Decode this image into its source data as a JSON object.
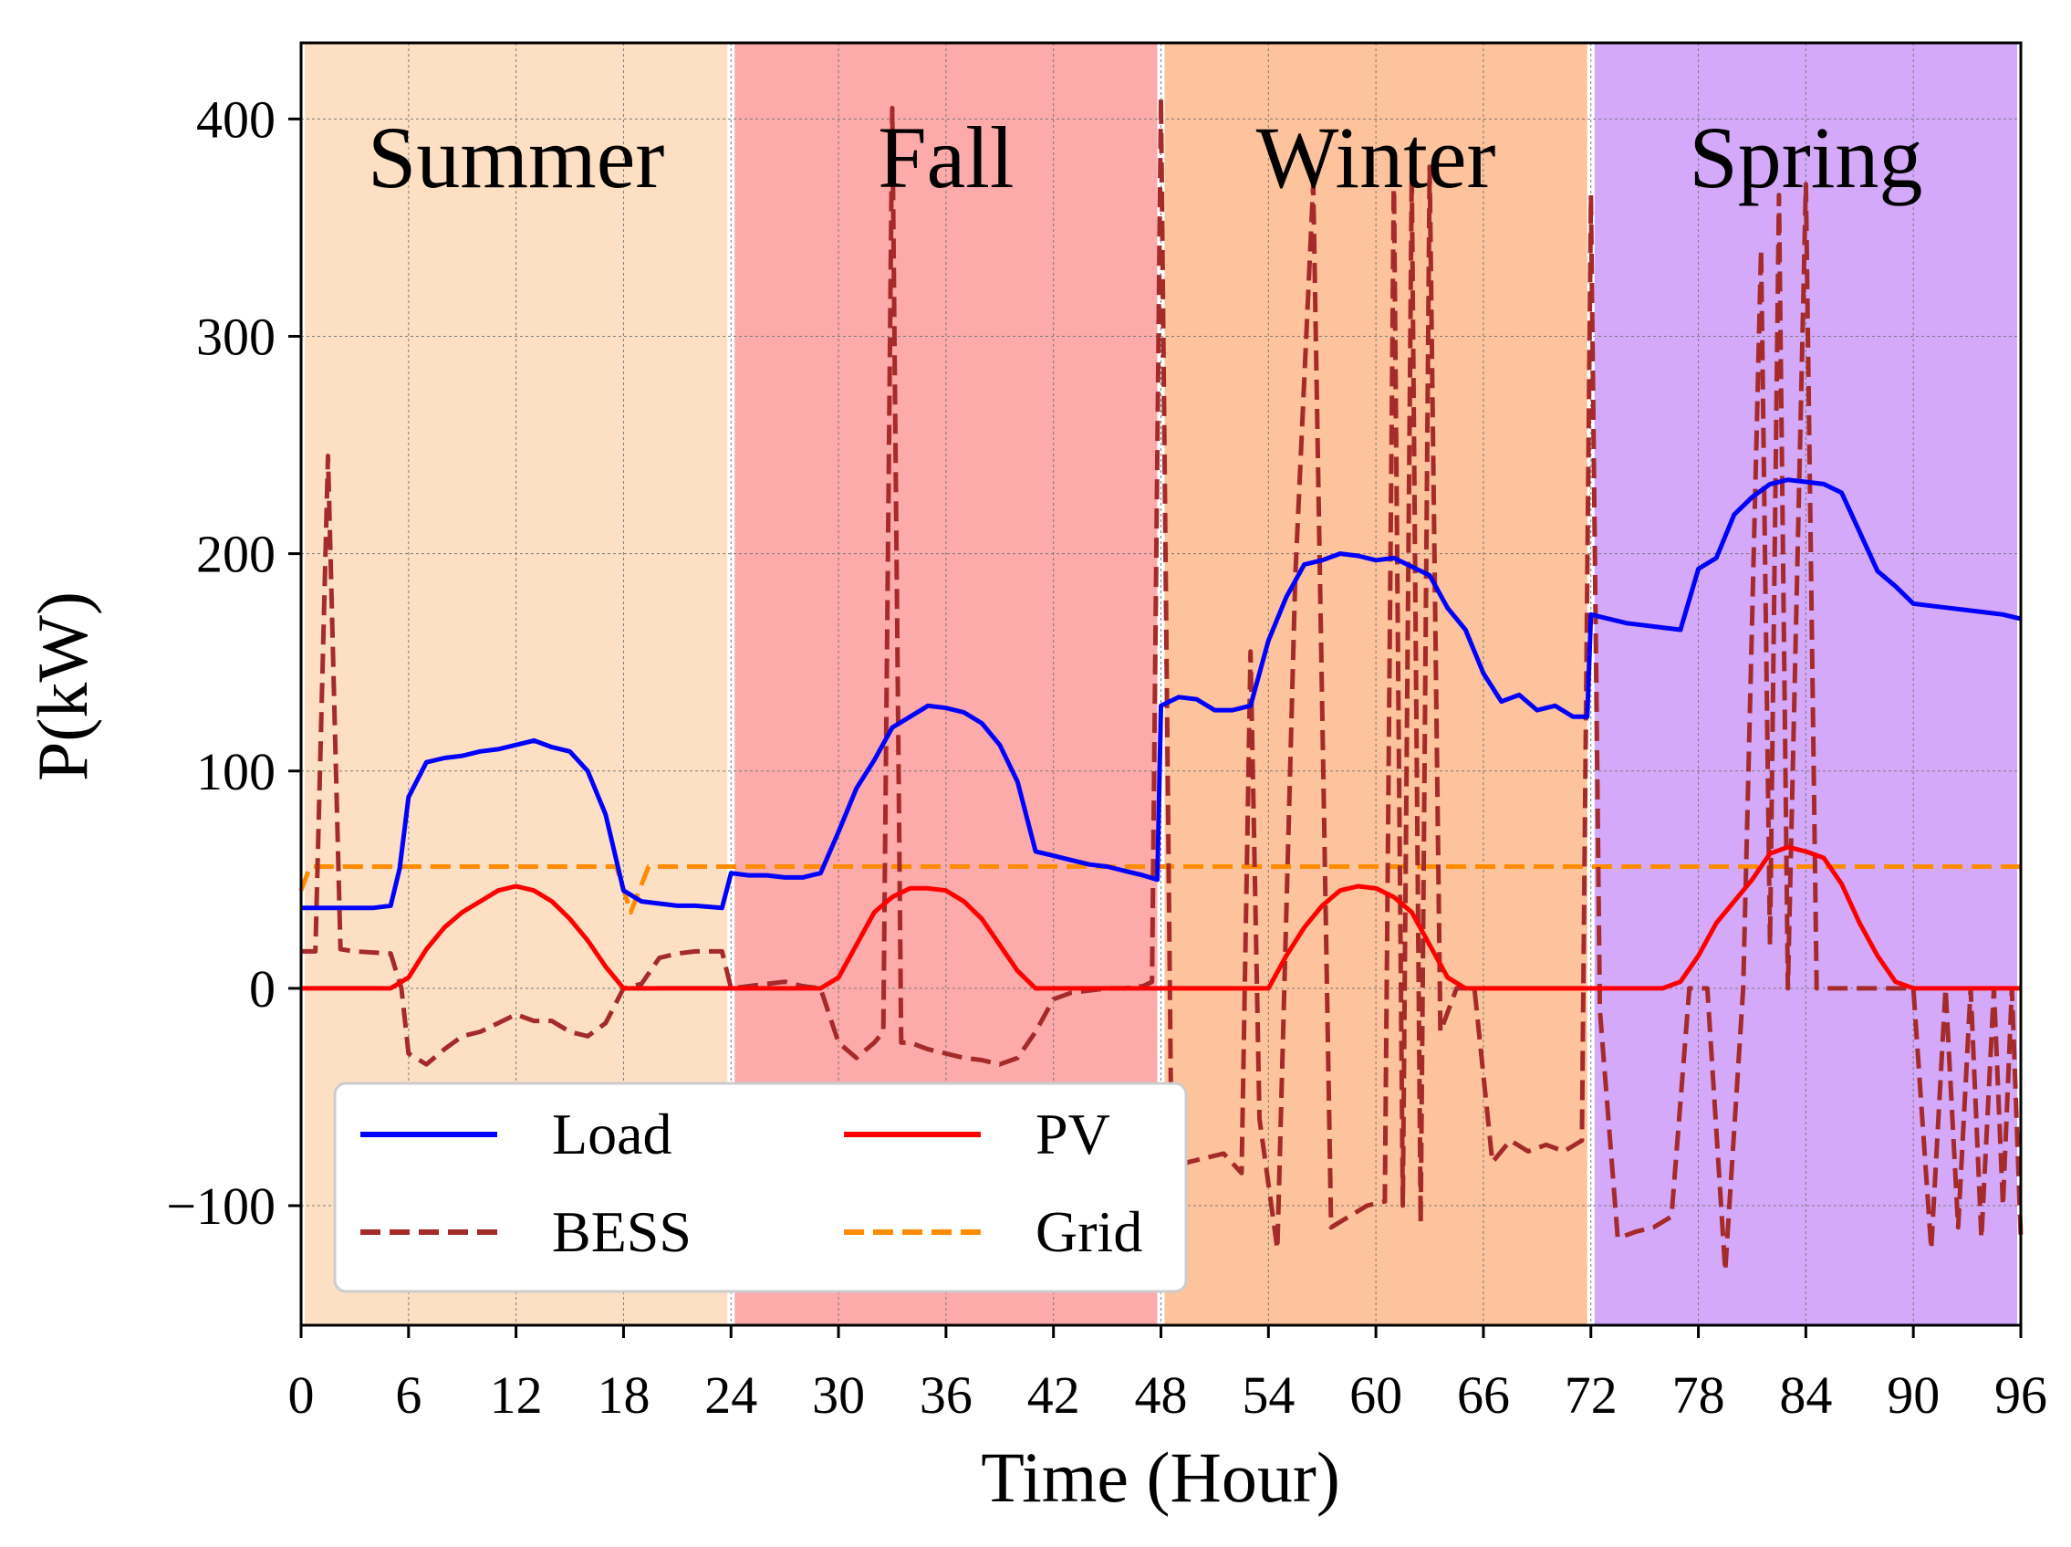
{
  "chart_data": {
    "type": "line",
    "xlabel": "Time (Hour)",
    "ylabel": "P(kW)",
    "xlim": [
      0,
      96
    ],
    "ylim": [
      -155,
      435
    ],
    "xticks": [
      0,
      6,
      12,
      18,
      24,
      30,
      36,
      42,
      48,
      54,
      60,
      66,
      72,
      78,
      84,
      90,
      96
    ],
    "yticks": [
      -100,
      0,
      100,
      200,
      300,
      400
    ],
    "grid": true,
    "legend_position": "lower-left",
    "seasons": [
      {
        "label": "Summer",
        "start": 0,
        "end": 24,
        "color": "#fde0c4"
      },
      {
        "label": "Fall",
        "start": 24,
        "end": 48,
        "color": "#fcaaaa"
      },
      {
        "label": "Winter",
        "start": 48,
        "end": 72,
        "color": "#fdc39c"
      },
      {
        "label": "Spring",
        "start": 72,
        "end": 96,
        "color": "#d4a9fa"
      }
    ],
    "series": [
      {
        "name": "Load",
        "color": "#0000ff",
        "dash": "solid",
        "points": [
          [
            0,
            37
          ],
          [
            1,
            37
          ],
          [
            2,
            37
          ],
          [
            3,
            37
          ],
          [
            4,
            37
          ],
          [
            5,
            38
          ],
          [
            5.5,
            55
          ],
          [
            6,
            88
          ],
          [
            7,
            104
          ],
          [
            8,
            106
          ],
          [
            9,
            107
          ],
          [
            10,
            109
          ],
          [
            11,
            110
          ],
          [
            12,
            112
          ],
          [
            13,
            114
          ],
          [
            14,
            111
          ],
          [
            15,
            109
          ],
          [
            16,
            100
          ],
          [
            17,
            80
          ],
          [
            18,
            45
          ],
          [
            19,
            40
          ],
          [
            20,
            39
          ],
          [
            21,
            38
          ],
          [
            22,
            38
          ],
          [
            23.5,
            37
          ],
          [
            24,
            53
          ],
          [
            25,
            52
          ],
          [
            26,
            52
          ],
          [
            27,
            51
          ],
          [
            28,
            51
          ],
          [
            29,
            53
          ],
          [
            30,
            72
          ],
          [
            31,
            92
          ],
          [
            32,
            105
          ],
          [
            33,
            120
          ],
          [
            34,
            125
          ],
          [
            35,
            130
          ],
          [
            36,
            129
          ],
          [
            37,
            127
          ],
          [
            38,
            122
          ],
          [
            39,
            112
          ],
          [
            40,
            95
          ],
          [
            41,
            63
          ],
          [
            42,
            61
          ],
          [
            43,
            59
          ],
          [
            44,
            57
          ],
          [
            45,
            56
          ],
          [
            46,
            54
          ],
          [
            47,
            52
          ],
          [
            47.8,
            50
          ],
          [
            48,
            130
          ],
          [
            49,
            134
          ],
          [
            50,
            133
          ],
          [
            51,
            128
          ],
          [
            52,
            128
          ],
          [
            53,
            130
          ],
          [
            54,
            160
          ],
          [
            55,
            180
          ],
          [
            56,
            195
          ],
          [
            57,
            197
          ],
          [
            58,
            200
          ],
          [
            59,
            199
          ],
          [
            60,
            197
          ],
          [
            61,
            198
          ],
          [
            62,
            194
          ],
          [
            63,
            190
          ],
          [
            64,
            175
          ],
          [
            65,
            165
          ],
          [
            66,
            145
          ],
          [
            67,
            132
          ],
          [
            68,
            135
          ],
          [
            69,
            128
          ],
          [
            70,
            130
          ],
          [
            71,
            125
          ],
          [
            71.8,
            125
          ],
          [
            72,
            172
          ],
          [
            73,
            170
          ],
          [
            74,
            168
          ],
          [
            75,
            167
          ],
          [
            76,
            166
          ],
          [
            77,
            165
          ],
          [
            78,
            193
          ],
          [
            79,
            198
          ],
          [
            80,
            218
          ],
          [
            81,
            226
          ],
          [
            82,
            232
          ],
          [
            83,
            234
          ],
          [
            84,
            233
          ],
          [
            85,
            232
          ],
          [
            86,
            228
          ],
          [
            87,
            210
          ],
          [
            88,
            192
          ],
          [
            89,
            185
          ],
          [
            90,
            177
          ],
          [
            91,
            176
          ],
          [
            92,
            175
          ],
          [
            93,
            174
          ],
          [
            94,
            173
          ],
          [
            95,
            172
          ],
          [
            96,
            170
          ]
        ]
      },
      {
        "name": "BESS",
        "color": "#a52a2a",
        "dash": "dashed",
        "points": [
          [
            0,
            17
          ],
          [
            0.8,
            17
          ],
          [
            1.5,
            245
          ],
          [
            2.2,
            18
          ],
          [
            3,
            17
          ],
          [
            5,
            16
          ],
          [
            5.6,
            0
          ],
          [
            6,
            -30
          ],
          [
            7,
            -35
          ],
          [
            8,
            -28
          ],
          [
            9,
            -22
          ],
          [
            10,
            -20
          ],
          [
            11,
            -16
          ],
          [
            12,
            -12
          ],
          [
            13,
            -15
          ],
          [
            14,
            -15
          ],
          [
            15,
            -20
          ],
          [
            16,
            -22
          ],
          [
            17,
            -16
          ],
          [
            18,
            0
          ],
          [
            19,
            2
          ],
          [
            20,
            14
          ],
          [
            21,
            16
          ],
          [
            22,
            17
          ],
          [
            23.5,
            17
          ],
          [
            24,
            0
          ],
          [
            25,
            1
          ],
          [
            26,
            2
          ],
          [
            27,
            3
          ],
          [
            28,
            1
          ],
          [
            29,
            0
          ],
          [
            30,
            -25
          ],
          [
            31,
            -32
          ],
          [
            32,
            -25
          ],
          [
            32.5,
            -20
          ],
          [
            33,
            405
          ],
          [
            33.5,
            -25
          ],
          [
            34,
            -25
          ],
          [
            35,
            -28
          ],
          [
            36,
            -30
          ],
          [
            37,
            -32
          ],
          [
            38,
            -33
          ],
          [
            39,
            -35
          ],
          [
            40,
            -32
          ],
          [
            41,
            -20
          ],
          [
            42,
            -5
          ],
          [
            43,
            -2
          ],
          [
            44,
            -1
          ],
          [
            45,
            0
          ],
          [
            46,
            0
          ],
          [
            47,
            1
          ],
          [
            47.5,
            3
          ],
          [
            48,
            410
          ],
          [
            48.6,
            -85
          ],
          [
            49.5,
            -80
          ],
          [
            50.5,
            -78
          ],
          [
            51.5,
            -76
          ],
          [
            52.5,
            -85
          ],
          [
            53,
            155
          ],
          [
            53.5,
            -60
          ],
          [
            54.5,
            -120
          ],
          [
            55.5,
            190
          ],
          [
            56.5,
            370
          ],
          [
            57.5,
            -110
          ],
          [
            58.5,
            -105
          ],
          [
            59.5,
            -100
          ],
          [
            60.5,
            -98
          ],
          [
            61,
            375
          ],
          [
            61.5,
            -100
          ],
          [
            62,
            375
          ],
          [
            62.5,
            -108
          ],
          [
            63,
            378
          ],
          [
            63.6,
            -20
          ],
          [
            64.5,
            0
          ],
          [
            65.5,
            0
          ],
          [
            66.5,
            -80
          ],
          [
            67.5,
            -70
          ],
          [
            68.5,
            -75
          ],
          [
            69.5,
            -72
          ],
          [
            70.5,
            -75
          ],
          [
            71.5,
            -70
          ],
          [
            72,
            365
          ],
          [
            72.5,
            -10
          ],
          [
            73.5,
            -115
          ],
          [
            74.5,
            -112
          ],
          [
            75.5,
            -110
          ],
          [
            76.5,
            -105
          ],
          [
            77.5,
            0
          ],
          [
            78.5,
            0
          ],
          [
            79.5,
            -130
          ],
          [
            80.5,
            0
          ],
          [
            81.5,
            340
          ],
          [
            82,
            20
          ],
          [
            82.5,
            365
          ],
          [
            83,
            0
          ],
          [
            84,
            370
          ],
          [
            84.6,
            0
          ],
          [
            86,
            0
          ],
          [
            88,
            0
          ],
          [
            89,
            0
          ],
          [
            90,
            0
          ],
          [
            91,
            -120
          ],
          [
            91.8,
            0
          ],
          [
            92.5,
            -110
          ],
          [
            93.2,
            0
          ],
          [
            93.8,
            -115
          ],
          [
            94.5,
            0
          ],
          [
            95,
            -100
          ],
          [
            95.5,
            0
          ],
          [
            96,
            -115
          ]
        ]
      },
      {
        "name": "PV",
        "color": "#ff0000",
        "dash": "solid",
        "points": [
          [
            0,
            0
          ],
          [
            5,
            0
          ],
          [
            6,
            5
          ],
          [
            7,
            18
          ],
          [
            8,
            28
          ],
          [
            9,
            35
          ],
          [
            10,
            40
          ],
          [
            11,
            45
          ],
          [
            12,
            47
          ],
          [
            13,
            45
          ],
          [
            14,
            40
          ],
          [
            15,
            32
          ],
          [
            16,
            22
          ],
          [
            17,
            10
          ],
          [
            18,
            0
          ],
          [
            19,
            0
          ],
          [
            20,
            0
          ],
          [
            24,
            0
          ],
          [
            29,
            0
          ],
          [
            30,
            5
          ],
          [
            31,
            20
          ],
          [
            32,
            35
          ],
          [
            33,
            42
          ],
          [
            34,
            46
          ],
          [
            35,
            46
          ],
          [
            36,
            45
          ],
          [
            37,
            40
          ],
          [
            38,
            32
          ],
          [
            39,
            20
          ],
          [
            40,
            8
          ],
          [
            41,
            0
          ],
          [
            48,
            0
          ],
          [
            54,
            0
          ],
          [
            55,
            15
          ],
          [
            56,
            28
          ],
          [
            57,
            38
          ],
          [
            58,
            45
          ],
          [
            59,
            47
          ],
          [
            60,
            46
          ],
          [
            61,
            42
          ],
          [
            62,
            35
          ],
          [
            63,
            20
          ],
          [
            64,
            5
          ],
          [
            65,
            0
          ],
          [
            72,
            0
          ],
          [
            76,
            0
          ],
          [
            77,
            3
          ],
          [
            78,
            15
          ],
          [
            79,
            30
          ],
          [
            80,
            40
          ],
          [
            81,
            50
          ],
          [
            82,
            62
          ],
          [
            83,
            65
          ],
          [
            84,
            63
          ],
          [
            85,
            60
          ],
          [
            86,
            48
          ],
          [
            87,
            30
          ],
          [
            88,
            15
          ],
          [
            89,
            3
          ],
          [
            90,
            0
          ],
          [
            96,
            0
          ]
        ]
      },
      {
        "name": "Grid",
        "color": "#ff8c00",
        "dash": "dashed",
        "points": [
          [
            0,
            45
          ],
          [
            0.5,
            56
          ],
          [
            17.6,
            56
          ],
          [
            18.4,
            35
          ],
          [
            19.4,
            56
          ],
          [
            96,
            56
          ]
        ]
      }
    ]
  }
}
